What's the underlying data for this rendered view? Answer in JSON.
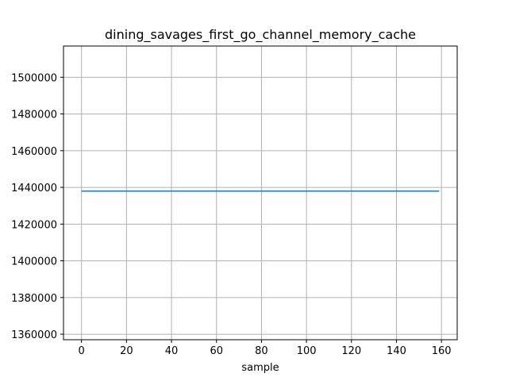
{
  "chart_data": {
    "type": "line",
    "title": "dining_savages_first_go_channel_memory_cache",
    "xlabel": "sample",
    "ylabel": "",
    "xlim": [
      -8,
      167
    ],
    "ylim": [
      1357000,
      1517000
    ],
    "xticks": [
      0,
      20,
      40,
      60,
      80,
      100,
      120,
      140,
      160
    ],
    "yticks": [
      1360000,
      1380000,
      1400000,
      1420000,
      1440000,
      1460000,
      1480000,
      1500000
    ],
    "grid": true,
    "series": [
      {
        "color": "#1f77b4",
        "x": [
          0,
          159
        ],
        "y": [
          1438000,
          1438000
        ]
      }
    ]
  }
}
